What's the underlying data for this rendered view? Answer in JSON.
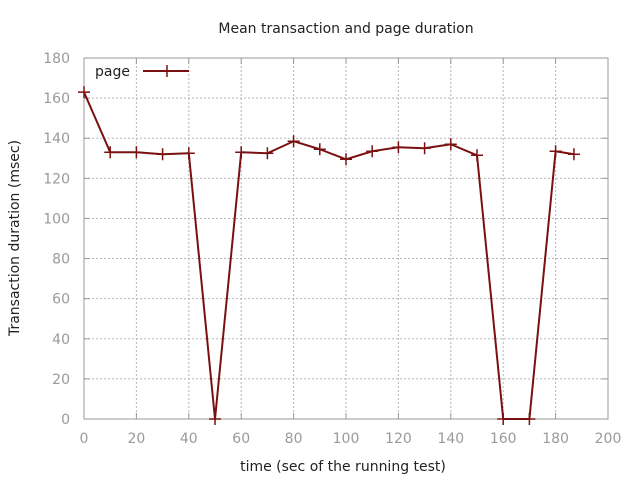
{
  "chart_data": {
    "type": "line",
    "title": "Mean transaction and page duration",
    "xlabel": "time (sec of the running test)",
    "ylabel": "Transaction duration (msec)",
    "xlim": [
      0,
      200
    ],
    "ylim": [
      0,
      180
    ],
    "xticks": [
      0,
      20,
      40,
      60,
      80,
      100,
      120,
      140,
      160,
      180,
      200
    ],
    "yticks": [
      0,
      20,
      40,
      60,
      80,
      100,
      120,
      140,
      160,
      180
    ],
    "grid": true,
    "legend_position": "top-left",
    "series": [
      {
        "name": "page",
        "color": "#7a1010",
        "marker": "plus",
        "x": [
          0,
          10,
          20,
          30,
          40,
          50,
          60,
          70,
          80,
          90,
          100,
          110,
          120,
          130,
          140,
          150,
          160,
          170,
          180,
          187
        ],
        "y": [
          163,
          133,
          133,
          132,
          132.5,
          0,
          133,
          132.5,
          138.5,
          134.5,
          129.5,
          133.5,
          135.5,
          135,
          137,
          131.5,
          0,
          0,
          133.5,
          132
        ]
      }
    ]
  }
}
